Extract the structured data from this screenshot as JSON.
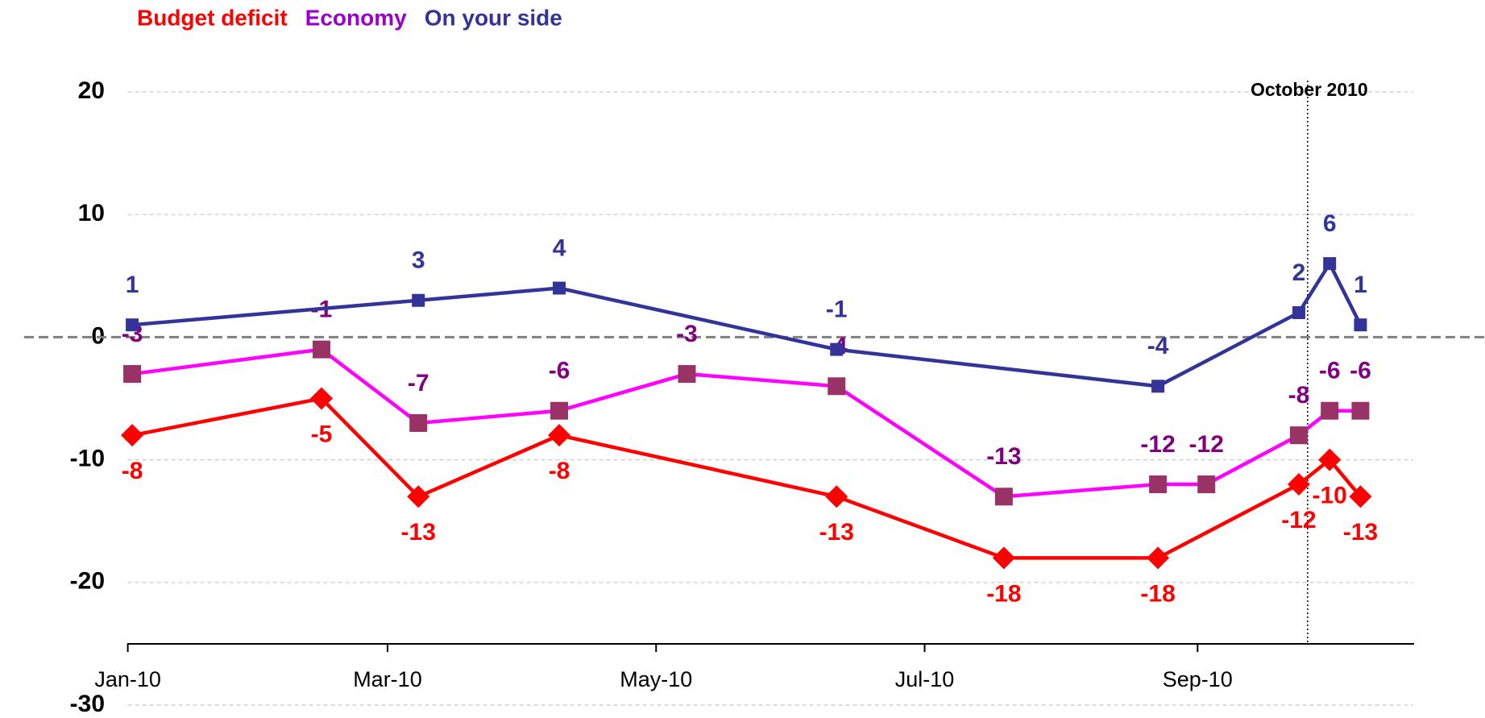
{
  "chart_data": {
    "type": "line",
    "xlim": [
      "2010-01-01",
      "2010-10-20"
    ],
    "xticks": [
      {
        "value": "2010-01-01",
        "label": "Jan-10"
      },
      {
        "value": "2010-03-01",
        "label": "Mar-10"
      },
      {
        "value": "2010-05-01",
        "label": "May-10"
      },
      {
        "value": "2010-07-01",
        "label": "Jul-10"
      },
      {
        "value": "2010-09-01",
        "label": "Sep-10"
      }
    ],
    "ylim": [
      -30,
      20
    ],
    "yticks": [
      20,
      10,
      0,
      -10,
      -20,
      -30
    ],
    "grid": true,
    "legend": "top-left",
    "annotation": {
      "label": "October 2010",
      "x": "2010-09-26"
    },
    "series": [
      {
        "name": "Budget deficit",
        "color": "#ff0000",
        "label_color": "#ff0000",
        "marker": "diamond",
        "label_position": "below",
        "x": [
          "2010-01-02",
          "2010-02-14",
          "2010-03-08",
          "2010-04-09",
          "2010-06-11",
          "2010-07-19",
          "2010-08-23",
          "2010-09-24",
          "2010-10-01",
          "2010-10-08"
        ],
        "values": [
          -8,
          -5,
          -13,
          -8,
          -13,
          -18,
          -18,
          -12,
          -10,
          -13
        ]
      },
      {
        "name": "Economy",
        "color": "#ff00ff",
        "marker_color": "#993366",
        "label_color": "#800080",
        "legend_color": "#9900cc",
        "marker": "square",
        "label_position": "above",
        "x": [
          "2010-01-02",
          "2010-02-14",
          "2010-03-08",
          "2010-04-09",
          "2010-05-08",
          "2010-06-11",
          "2010-07-19",
          "2010-08-23",
          "2010-09-03",
          "2010-09-24",
          "2010-10-01",
          "2010-10-08"
        ],
        "values": [
          -3,
          -1,
          -7,
          -6,
          -3,
          -4,
          -13,
          -12,
          -12,
          -8,
          -6,
          -6
        ]
      },
      {
        "name": "On your side",
        "color": "#333399",
        "label_color": "#333399",
        "marker": "small-square",
        "label_position": "above",
        "x": [
          "2010-01-02",
          "2010-03-08",
          "2010-04-09",
          "2010-06-11",
          "2010-08-23",
          "2010-09-24",
          "2010-10-01",
          "2010-10-08"
        ],
        "values": [
          1,
          3,
          4,
          -1,
          -4,
          2,
          6,
          1
        ]
      }
    ]
  }
}
